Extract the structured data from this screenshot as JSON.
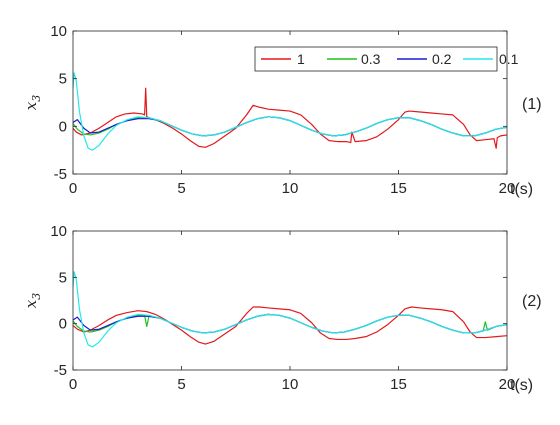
{
  "chart_data": [
    {
      "type": "line",
      "tag": "(1)",
      "ylabel": "x",
      "ylabel_sub": "3",
      "xlabel": "t(s)",
      "xlim": [
        0,
        20
      ],
      "ylim": [
        -5,
        10
      ],
      "xticks": [
        0,
        5,
        10,
        15,
        20
      ],
      "yticks": [
        -5,
        0,
        5,
        10
      ],
      "grid": false,
      "legend": {
        "placement": "top-right",
        "orientation": "horizontal"
      },
      "colors": {
        "axis": "#262626"
      },
      "series": [
        {
          "name": "1",
          "color": "#e3191c",
          "x": [
            0,
            0.15,
            0.4,
            0.8,
            1.2,
            1.6,
            2.0,
            2.4,
            2.8,
            3.2,
            3.3,
            3.35,
            3.4,
            3.5,
            3.8,
            4.2,
            4.6,
            5.0,
            5.4,
            5.8,
            6.1,
            6.5,
            7.0,
            7.5,
            8.0,
            8.3,
            8.6,
            9.0,
            9.5,
            10.0,
            10.5,
            11.0,
            11.4,
            11.8,
            12.2,
            12.6,
            12.8,
            12.85,
            13.0,
            13.5,
            14.0,
            14.5,
            15.0,
            15.3,
            15.5,
            16.0,
            16.5,
            17.0,
            17.5,
            18.0,
            18.3,
            18.6,
            19.0,
            19.4,
            19.5,
            19.55,
            19.7,
            20.0
          ],
          "y": [
            -0.2,
            -0.6,
            -0.9,
            -0.7,
            -0.2,
            0.4,
            1.0,
            1.3,
            1.4,
            1.3,
            1.2,
            4.0,
            1.0,
            0.9,
            0.7,
            0.3,
            -0.2,
            -0.8,
            -1.5,
            -2.1,
            -2.2,
            -1.8,
            -1.0,
            -0.2,
            1.2,
            2.2,
            2.0,
            1.8,
            1.7,
            1.6,
            1.2,
            0.2,
            -0.8,
            -1.5,
            -1.6,
            -1.6,
            -1.7,
            -0.6,
            -1.6,
            -1.5,
            -1.1,
            -0.3,
            0.7,
            1.5,
            1.6,
            1.5,
            1.4,
            1.3,
            1.2,
            0.2,
            -0.9,
            -1.5,
            -1.4,
            -1.3,
            -2.3,
            -1.2,
            -1.0,
            -0.9
          ]
        },
        {
          "name": "0.3",
          "color": "#1ec21e",
          "x": [
            0,
            0.2,
            0.5,
            0.8,
            1.2,
            1.6,
            2.0,
            2.5,
            3.0,
            3.5,
            4.0,
            4.5,
            5.0,
            5.5,
            6.0,
            6.5,
            7.0,
            7.5,
            8.0,
            8.5,
            9.0,
            9.5,
            10.0,
            10.5,
            11.0,
            11.5,
            12.0,
            12.5,
            13.0,
            13.5,
            14.0,
            14.5,
            15.0,
            15.5,
            16.0,
            16.5,
            17.0,
            17.5,
            18.0,
            18.5,
            19.0,
            19.5,
            20.0
          ],
          "y": [
            0.3,
            -0.3,
            -0.8,
            -0.9,
            -0.7,
            -0.3,
            0.2,
            0.6,
            0.9,
            0.9,
            0.6,
            0.1,
            -0.4,
            -0.8,
            -1.0,
            -0.9,
            -0.6,
            -0.1,
            0.4,
            0.8,
            1.0,
            0.9,
            0.6,
            0.1,
            -0.4,
            -0.8,
            -1.0,
            -0.9,
            -0.6,
            -0.2,
            0.3,
            0.7,
            0.9,
            0.9,
            0.6,
            0.2,
            -0.3,
            -0.7,
            -1.0,
            -1.0,
            -0.7,
            -0.3,
            -0.1
          ]
        },
        {
          "name": "0.2",
          "color": "#1c1cd6",
          "x": [
            0,
            0.2,
            0.5,
            0.8,
            1.2,
            1.6,
            2.0,
            2.5,
            3.0,
            3.5,
            4.0,
            4.5,
            5.0,
            5.5,
            6.0,
            6.5,
            7.0,
            7.5,
            8.0,
            8.5,
            9.0,
            9.5,
            10.0,
            10.5,
            11.0,
            11.5,
            12.0,
            12.5,
            13.0,
            13.5,
            14.0,
            14.5,
            15.0,
            15.5,
            16.0,
            16.5,
            17.0,
            17.5,
            18.0,
            18.5,
            19.0,
            19.5,
            20.0
          ],
          "y": [
            0.4,
            0.7,
            -0.2,
            -0.7,
            -0.6,
            -0.2,
            0.2,
            0.6,
            0.8,
            0.8,
            0.6,
            0.1,
            -0.4,
            -0.8,
            -1.0,
            -0.9,
            -0.6,
            -0.1,
            0.4,
            0.8,
            1.0,
            0.9,
            0.6,
            0.1,
            -0.4,
            -0.8,
            -1.0,
            -0.9,
            -0.6,
            -0.2,
            0.3,
            0.7,
            0.9,
            0.9,
            0.6,
            0.2,
            -0.3,
            -0.7,
            -1.0,
            -1.0,
            -0.7,
            -0.3,
            -0.1
          ]
        },
        {
          "name": "0.1",
          "color": "#25e8e8",
          "x": [
            0,
            0.05,
            0.15,
            0.3,
            0.5,
            0.7,
            0.9,
            1.2,
            1.6,
            2.0,
            2.5,
            3.0,
            3.5,
            4.0,
            4.5,
            5.0,
            5.5,
            6.0,
            6.5,
            7.0,
            7.5,
            8.0,
            8.5,
            9.0,
            9.5,
            10.0,
            10.5,
            11.0,
            11.5,
            12.0,
            12.5,
            13.0,
            13.5,
            14.0,
            14.5,
            15.0,
            15.5,
            16.0,
            16.5,
            17.0,
            17.5,
            18.0,
            18.5,
            19.0,
            19.5,
            20.0
          ],
          "y": [
            4.0,
            5.6,
            4.8,
            1.5,
            -1.0,
            -2.3,
            -2.5,
            -2.0,
            -0.8,
            0.1,
            0.7,
            1.0,
            0.9,
            0.6,
            0.1,
            -0.4,
            -0.8,
            -1.0,
            -0.9,
            -0.6,
            -0.1,
            0.4,
            0.8,
            1.0,
            0.9,
            0.6,
            0.1,
            -0.4,
            -0.8,
            -1.0,
            -0.9,
            -0.6,
            -0.2,
            0.3,
            0.7,
            0.9,
            0.9,
            0.6,
            0.2,
            -0.3,
            -0.7,
            -1.0,
            -1.0,
            -0.7,
            -0.3,
            -0.1
          ]
        }
      ]
    },
    {
      "type": "line",
      "tag": "(2)",
      "ylabel": "x",
      "ylabel_sub": "3",
      "xlabel": "t(s)",
      "xlim": [
        0,
        20
      ],
      "ylim": [
        -5,
        10
      ],
      "xticks": [
        0,
        5,
        10,
        15,
        20
      ],
      "yticks": [
        -5,
        0,
        5,
        10
      ],
      "grid": false,
      "legend": null,
      "colors": {
        "axis": "#262626"
      },
      "series": [
        {
          "color": "#e3191c",
          "x": [
            0,
            0.2,
            0.5,
            0.8,
            1.2,
            1.6,
            2.0,
            2.5,
            3.0,
            3.4,
            3.8,
            4.2,
            4.6,
            5.0,
            5.4,
            5.8,
            6.1,
            6.5,
            7.0,
            7.5,
            8.0,
            8.3,
            8.6,
            9.0,
            9.5,
            10.0,
            10.5,
            11.0,
            11.4,
            11.8,
            12.2,
            12.6,
            13.0,
            13.5,
            14.0,
            14.5,
            15.0,
            15.3,
            15.6,
            16.0,
            16.5,
            17.0,
            17.5,
            18.0,
            18.3,
            18.6,
            19.0,
            19.5,
            20.0
          ],
          "y": [
            -0.2,
            -0.6,
            -0.9,
            -0.7,
            -0.2,
            0.4,
            0.9,
            1.2,
            1.4,
            1.3,
            1.0,
            0.5,
            -0.1,
            -0.7,
            -1.4,
            -2.0,
            -2.2,
            -1.9,
            -1.1,
            -0.3,
            1.1,
            1.8,
            1.8,
            1.7,
            1.6,
            1.5,
            1.1,
            0.1,
            -1.0,
            -1.6,
            -1.7,
            -1.7,
            -1.6,
            -1.4,
            -0.9,
            -0.1,
            0.9,
            1.6,
            1.8,
            1.7,
            1.6,
            1.5,
            1.3,
            0.2,
            -0.9,
            -1.5,
            -1.5,
            -1.4,
            -1.3
          ]
        },
        {
          "name": "0.3",
          "color": "#1ec21e",
          "x": [
            0,
            0.2,
            0.5,
            0.8,
            1.2,
            1.6,
            2.0,
            2.5,
            3.0,
            3.3,
            3.4,
            3.5,
            4.0,
            4.5,
            5.0,
            5.5,
            6.0,
            6.5,
            7.0,
            7.5,
            8.0,
            8.5,
            9.0,
            9.5,
            10.0,
            10.5,
            11.0,
            11.5,
            12.0,
            12.5,
            13.0,
            13.5,
            14.0,
            14.5,
            15.0,
            15.5,
            16.0,
            16.5,
            17.0,
            17.5,
            18.0,
            18.5,
            18.9,
            19.0,
            19.1,
            19.5,
            20.0
          ],
          "y": [
            0.3,
            -0.3,
            -0.8,
            -0.9,
            -0.7,
            -0.3,
            0.2,
            0.6,
            0.9,
            0.9,
            -0.3,
            0.8,
            0.6,
            0.1,
            -0.4,
            -0.8,
            -1.0,
            -0.9,
            -0.6,
            -0.1,
            0.4,
            0.8,
            1.0,
            0.9,
            0.6,
            0.1,
            -0.4,
            -0.8,
            -1.0,
            -0.9,
            -0.6,
            -0.2,
            0.3,
            0.7,
            0.9,
            0.9,
            0.6,
            0.2,
            -0.3,
            -0.7,
            -1.0,
            -1.0,
            -0.8,
            0.2,
            -0.7,
            -0.3,
            -0.1
          ]
        },
        {
          "name": "0.2",
          "color": "#1c1cd6",
          "x": [
            0,
            0.2,
            0.5,
            0.8,
            1.2,
            1.6,
            2.0,
            2.5,
            3.0,
            3.5,
            4.0,
            4.5,
            5.0,
            5.5,
            6.0,
            6.5,
            7.0,
            7.5,
            8.0,
            8.5,
            9.0,
            9.5,
            10.0,
            10.5,
            11.0,
            11.5,
            12.0,
            12.5,
            13.0,
            13.5,
            14.0,
            14.5,
            15.0,
            15.5,
            16.0,
            16.5,
            17.0,
            17.5,
            18.0,
            18.5,
            19.0,
            19.5,
            20.0
          ],
          "y": [
            0.4,
            0.7,
            -0.2,
            -0.7,
            -0.6,
            -0.2,
            0.2,
            0.6,
            0.8,
            0.8,
            0.6,
            0.1,
            -0.4,
            -0.8,
            -1.0,
            -0.9,
            -0.6,
            -0.1,
            0.4,
            0.8,
            1.0,
            0.9,
            0.6,
            0.1,
            -0.4,
            -0.8,
            -1.0,
            -0.9,
            -0.6,
            -0.2,
            0.3,
            0.7,
            0.9,
            0.9,
            0.6,
            0.2,
            -0.3,
            -0.7,
            -1.0,
            -1.0,
            -0.7,
            -0.3,
            -0.1
          ]
        },
        {
          "name": "0.1",
          "color": "#25e8e8",
          "x": [
            0,
            0.05,
            0.15,
            0.3,
            0.5,
            0.7,
            0.9,
            1.2,
            1.6,
            2.0,
            2.5,
            3.0,
            3.5,
            4.0,
            4.5,
            5.0,
            5.5,
            6.0,
            6.5,
            7.0,
            7.5,
            8.0,
            8.5,
            9.0,
            9.5,
            10.0,
            10.5,
            11.0,
            11.5,
            12.0,
            12.5,
            13.0,
            13.5,
            14.0,
            14.5,
            15.0,
            15.5,
            16.0,
            16.5,
            17.0,
            17.5,
            18.0,
            18.5,
            19.0,
            19.5,
            20.0
          ],
          "y": [
            4.0,
            5.6,
            4.8,
            1.5,
            -1.0,
            -2.3,
            -2.5,
            -2.0,
            -0.8,
            0.1,
            0.7,
            1.0,
            0.9,
            0.6,
            0.1,
            -0.4,
            -0.8,
            -1.0,
            -0.9,
            -0.6,
            -0.1,
            0.4,
            0.8,
            1.0,
            0.9,
            0.6,
            0.1,
            -0.4,
            -0.8,
            -1.0,
            -0.9,
            -0.6,
            -0.2,
            0.3,
            0.7,
            0.9,
            0.9,
            0.6,
            0.2,
            -0.3,
            -0.7,
            -1.0,
            -1.0,
            -0.7,
            -0.3,
            -0.1
          ]
        }
      ]
    }
  ]
}
